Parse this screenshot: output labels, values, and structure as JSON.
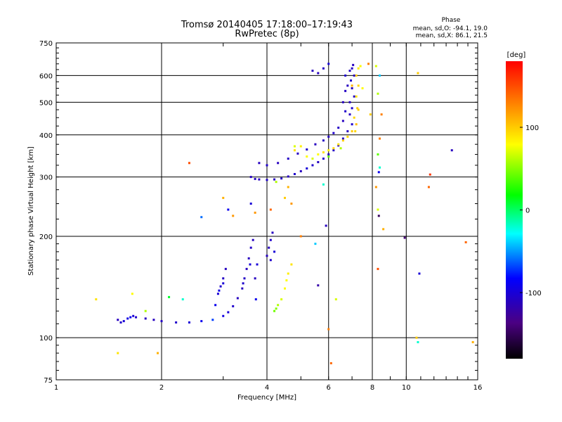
{
  "chart_data": {
    "type": "scatter",
    "title": "Tromsø 20140405 17:18:00–17:19:43",
    "subtitle": "RwPretec (8p)",
    "xlabel": "Frequency [MHz]",
    "ylabel": "Stationary phase Virtual Height [km]",
    "x_scale": "log",
    "y_scale": "log",
    "xlim": [
      1,
      16
    ],
    "ylim": [
      75,
      750
    ],
    "x_ticks": [
      1,
      2,
      4,
      6,
      8,
      10,
      16
    ],
    "y_ticks": [
      75,
      100,
      200,
      300,
      400,
      500,
      600,
      750
    ],
    "grid": true,
    "stats": {
      "title": "Phase",
      "line_o": "mean, sd,O: -94.1, 19.0",
      "line_x": "mean, sd,X: 86.1, 21.5"
    },
    "colorbar": {
      "label": "[deg]",
      "ticks": [
        100,
        0,
        -100
      ],
      "range": [
        -180,
        180
      ]
    },
    "series": [
      {
        "points": [
          [
            1.5,
            113,
            -110
          ],
          [
            1.53,
            111,
            -105
          ],
          [
            1.56,
            112,
            -100
          ],
          [
            1.6,
            114,
            -95
          ],
          [
            1.63,
            115,
            -90
          ],
          [
            1.66,
            116,
            -100
          ],
          [
            1.69,
            115,
            -105
          ],
          [
            1.8,
            114,
            -110
          ],
          [
            1.9,
            113,
            -110
          ],
          [
            2.0,
            112,
            -108
          ],
          [
            2.2,
            111,
            -105
          ],
          [
            2.4,
            111,
            -100
          ],
          [
            2.6,
            112,
            -90
          ],
          [
            2.8,
            113,
            -70
          ],
          [
            3.0,
            116,
            -95
          ],
          [
            3.1,
            119,
            -100
          ],
          [
            3.2,
            124,
            -105
          ],
          [
            3.3,
            131,
            -110
          ],
          [
            3.4,
            140,
            -110
          ],
          [
            3.45,
            150,
            -108
          ],
          [
            3.5,
            160,
            -110
          ],
          [
            3.55,
            172,
            -110
          ],
          [
            3.6,
            185,
            -108
          ],
          [
            3.65,
            195,
            -110
          ],
          [
            3.58,
            165,
            -100
          ],
          [
            3.42,
            145,
            -105
          ],
          [
            2.85,
            125,
            -90
          ],
          [
            2.9,
            135,
            -100
          ],
          [
            2.95,
            142,
            -105
          ],
          [
            3.0,
            150,
            -108
          ],
          [
            3.05,
            160,
            -110
          ],
          [
            3.0,
            145,
            -100
          ],
          [
            2.92,
            138,
            -95
          ],
          [
            3.7,
            150,
            -110
          ],
          [
            3.75,
            165,
            -100
          ],
          [
            3.72,
            130,
            -90
          ],
          [
            4.0,
            175,
            -110
          ],
          [
            4.05,
            185,
            -110
          ],
          [
            4.1,
            195,
            -105
          ],
          [
            4.15,
            205,
            -110
          ],
          [
            4.2,
            180,
            -100
          ],
          [
            4.1,
            170,
            -105
          ],
          [
            4.2,
            120,
            45
          ],
          [
            4.3,
            125,
            60
          ],
          [
            4.4,
            130,
            70
          ],
          [
            4.5,
            140,
            80
          ],
          [
            4.6,
            155,
            85
          ],
          [
            4.7,
            165,
            90
          ],
          [
            4.55,
            148,
            80
          ],
          [
            4.25,
            122,
            50
          ]
        ]
      },
      {
        "points": [
          [
            3.6,
            300,
            -110
          ],
          [
            3.7,
            296,
            -108
          ],
          [
            3.8,
            295,
            -110
          ],
          [
            4.0,
            294,
            -105
          ],
          [
            4.2,
            295,
            -110
          ],
          [
            4.4,
            297,
            -108
          ],
          [
            4.6,
            301,
            -110
          ],
          [
            4.8,
            306,
            -105
          ],
          [
            5.0,
            312,
            -110
          ],
          [
            5.2,
            318,
            -100
          ],
          [
            5.4,
            325,
            -105
          ],
          [
            5.6,
            332,
            -110
          ],
          [
            5.8,
            340,
            -105
          ],
          [
            6.0,
            350,
            -110
          ],
          [
            6.2,
            360,
            -108
          ],
          [
            6.4,
            372,
            -110
          ],
          [
            6.6,
            390,
            -105
          ],
          [
            6.8,
            410,
            -110
          ],
          [
            7.0,
            430,
            -105
          ],
          [
            6.9,
            460,
            -110
          ],
          [
            7.0,
            480,
            -105
          ],
          [
            6.9,
            500,
            -110
          ],
          [
            7.1,
            520,
            -108
          ],
          [
            7.0,
            550,
            -110
          ],
          [
            6.95,
            580,
            -105
          ],
          [
            7.1,
            600,
            -110
          ],
          [
            7.0,
            630,
            -108
          ],
          [
            7.05,
            645,
            -110
          ],
          [
            3.8,
            330,
            -110
          ],
          [
            4.0,
            325,
            -105
          ],
          [
            4.3,
            330,
            -110
          ],
          [
            4.6,
            340,
            -108
          ],
          [
            4.9,
            352,
            -110
          ],
          [
            5.2,
            362,
            -105
          ],
          [
            5.5,
            375,
            -110
          ],
          [
            5.8,
            385,
            -108
          ],
          [
            6.0,
            395,
            -110
          ],
          [
            6.2,
            405,
            -105
          ],
          [
            6.4,
            420,
            -108
          ],
          [
            6.6,
            440,
            -110
          ],
          [
            6.7,
            470,
            -105
          ],
          [
            6.6,
            500,
            -110
          ],
          [
            6.7,
            540,
            -108
          ],
          [
            6.8,
            560,
            -110
          ],
          [
            6.7,
            600,
            -105
          ],
          [
            6.9,
            620,
            -108
          ],
          [
            5.6,
            610,
            -110
          ],
          [
            5.8,
            630,
            -108
          ],
          [
            6.0,
            650,
            -100
          ],
          [
            5.4,
            620,
            -110
          ]
        ]
      },
      {
        "points": [
          [
            5.6,
            350,
            80
          ],
          [
            5.8,
            355,
            90
          ],
          [
            6.0,
            360,
            85
          ],
          [
            6.2,
            365,
            95
          ],
          [
            6.4,
            375,
            90
          ],
          [
            6.6,
            385,
            100
          ],
          [
            6.8,
            395,
            95
          ],
          [
            7.0,
            410,
            100
          ],
          [
            7.2,
            430,
            105
          ],
          [
            7.1,
            450,
            95
          ],
          [
            7.25,
            480,
            100
          ],
          [
            7.2,
            520,
            90
          ],
          [
            7.3,
            560,
            95
          ],
          [
            7.2,
            600,
            100
          ],
          [
            7.3,
            630,
            85
          ],
          [
            5.4,
            340,
            70
          ],
          [
            5.2,
            345,
            80
          ],
          [
            6.0,
            345,
            40
          ],
          [
            6.5,
            365,
            60
          ],
          [
            7.4,
            640,
            80
          ],
          [
            4.8,
            360,
            90
          ],
          [
            5.0,
            370,
            85
          ],
          [
            7.3,
            475,
            100
          ],
          [
            7.15,
            410,
            95
          ]
        ]
      },
      {
        "points": [
          [
            1.3,
            130,
            90
          ],
          [
            1.5,
            90,
            90
          ],
          [
            1.65,
            135,
            80
          ],
          [
            1.8,
            120,
            60
          ],
          [
            1.95,
            90,
            110
          ],
          [
            2.1,
            132,
            10
          ],
          [
            2.3,
            130,
            -20
          ],
          [
            2.4,
            330,
            150
          ],
          [
            2.6,
            228,
            -60
          ],
          [
            3.0,
            260,
            110
          ],
          [
            3.2,
            230,
            120
          ],
          [
            3.1,
            240,
            -90
          ],
          [
            3.6,
            250,
            -100
          ],
          [
            3.7,
            235,
            120
          ],
          [
            4.1,
            240,
            140
          ],
          [
            4.25,
            290,
            60
          ],
          [
            4.5,
            260,
            100
          ],
          [
            4.7,
            250,
            120
          ],
          [
            4.6,
            280,
            110
          ],
          [
            4.8,
            370,
            70
          ],
          [
            5.0,
            200,
            130
          ],
          [
            5.5,
            190,
            -40
          ],
          [
            5.6,
            143,
            -120
          ],
          [
            5.8,
            285,
            -20
          ],
          [
            5.9,
            215,
            -110
          ],
          [
            6.0,
            106,
            130
          ],
          [
            6.1,
            84,
            140
          ],
          [
            6.3,
            130,
            70
          ],
          [
            7.0,
            560,
            110
          ],
          [
            7.5,
            550,
            80
          ],
          [
            7.8,
            650,
            130
          ],
          [
            8.2,
            640,
            70
          ],
          [
            8.4,
            600,
            -40
          ],
          [
            8.3,
            530,
            60
          ],
          [
            8.5,
            460,
            130
          ],
          [
            8.4,
            390,
            130
          ],
          [
            8.3,
            350,
            40
          ],
          [
            8.4,
            320,
            -20
          ],
          [
            8.35,
            310,
            -90
          ],
          [
            8.3,
            240,
            70
          ],
          [
            8.35,
            230,
            -150
          ],
          [
            8.3,
            160,
            150
          ],
          [
            8.6,
            210,
            110
          ],
          [
            9.9,
            198,
            -140
          ],
          [
            10.8,
            610,
            100
          ],
          [
            10.9,
            155,
            -100
          ],
          [
            10.7,
            100,
            100
          ],
          [
            10.8,
            97,
            -20
          ],
          [
            11.7,
            305,
            160
          ],
          [
            11.6,
            280,
            140
          ],
          [
            13.5,
            360,
            -110
          ],
          [
            14.8,
            192,
            140
          ],
          [
            15.5,
            97,
            110
          ],
          [
            8.2,
            280,
            120
          ],
          [
            7.9,
            460,
            100
          ]
        ]
      }
    ]
  }
}
